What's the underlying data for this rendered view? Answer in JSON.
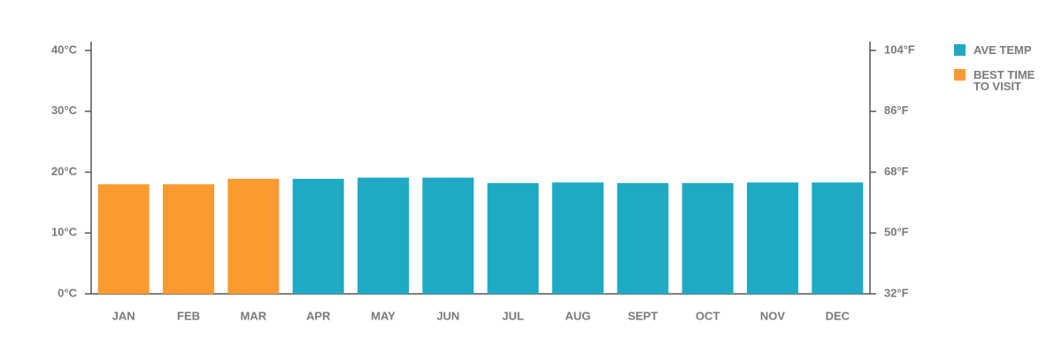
{
  "chart_data": {
    "type": "bar",
    "categories": [
      "JAN",
      "FEB",
      "MAR",
      "APR",
      "MAY",
      "JUN",
      "JUL",
      "AUG",
      "SEPT",
      "OCT",
      "NOV",
      "DEC"
    ],
    "series": [
      {
        "name": "AVE TEMP",
        "color": "#1eaac4",
        "values": [
          null,
          null,
          null,
          18.9,
          19.1,
          19.1,
          18.2,
          18.3,
          18.2,
          18.2,
          18.3,
          18.3
        ]
      },
      {
        "name": "BEST TIME TO VISIT",
        "color": "#fb9a2e",
        "values": [
          18.0,
          18.0,
          18.9,
          null,
          null,
          null,
          null,
          null,
          null,
          null,
          null,
          null
        ]
      }
    ],
    "ylim": [
      0,
      40
    ],
    "yticks": [
      {
        "value": 0,
        "label": "0°C"
      },
      {
        "value": 10,
        "label": "10°C"
      },
      {
        "value": 20,
        "label": "20°C"
      },
      {
        "value": 30,
        "label": "30°C"
      },
      {
        "value": 40,
        "label": "40°C"
      }
    ],
    "y2lim": [
      32,
      104
    ],
    "y2ticks": [
      {
        "value": 32,
        "label": "32°F"
      },
      {
        "value": 50,
        "label": "50°F"
      },
      {
        "value": 68,
        "label": "68°F"
      },
      {
        "value": 86,
        "label": "86°F"
      },
      {
        "value": 104,
        "label": "104°F"
      }
    ],
    "legend": "right"
  }
}
